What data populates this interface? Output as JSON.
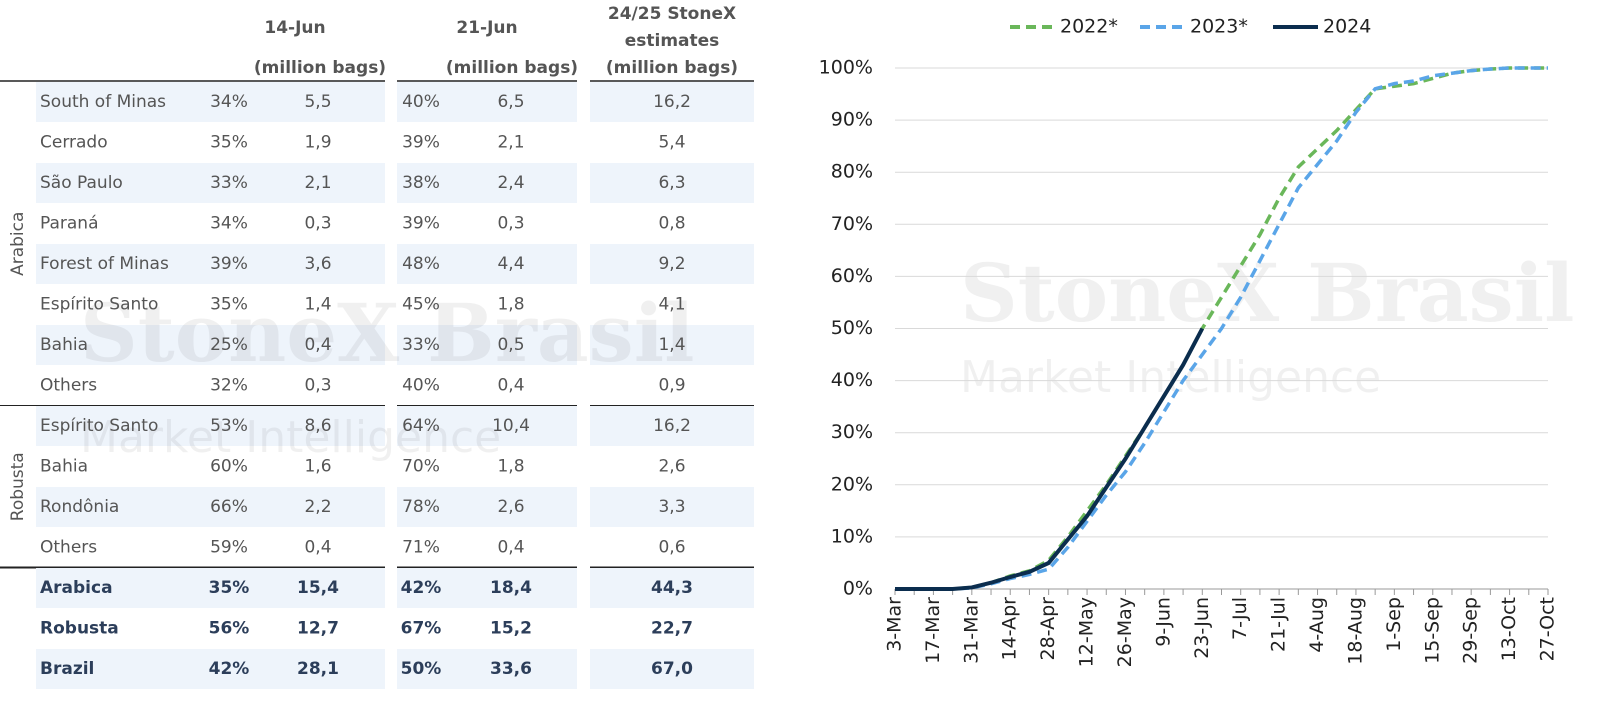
{
  "watermark": [
    "StoneX Brasil",
    "Market Intelligence"
  ],
  "table": {
    "header": {
      "col1": "14-Jun",
      "col1_unit": "(million bags)",
      "col2": "21-Jun",
      "col2_unit": "(million bags)",
      "col3": [
        "24/25 StoneX",
        "estimates",
        "(million bags)"
      ]
    },
    "groups": [
      {
        "name": "Arabica",
        "rows": [
          [
            "South of Minas",
            "34%",
            "5,5",
            "40%",
            "6,5",
            "16,2"
          ],
          [
            "Cerrado",
            "35%",
            "1,9",
            "39%",
            "2,1",
            "5,4"
          ],
          [
            "São Paulo",
            "33%",
            "2,1",
            "38%",
            "2,4",
            "6,3"
          ],
          [
            "Paraná",
            "34%",
            "0,3",
            "39%",
            "0,3",
            "0,8"
          ],
          [
            "Forest of Minas",
            "39%",
            "3,6",
            "48%",
            "4,4",
            "9,2"
          ],
          [
            "Espírito Santo",
            "35%",
            "1,4",
            "45%",
            "1,8",
            "4,1"
          ],
          [
            "Bahia",
            "25%",
            "0,4",
            "33%",
            "0,5",
            "1,4"
          ],
          [
            "Others",
            "32%",
            "0,3",
            "40%",
            "0,4",
            "0,9"
          ]
        ]
      },
      {
        "name": "Robusta",
        "rows": [
          [
            "Espírito Santo",
            "53%",
            "8,6",
            "64%",
            "10,4",
            "16,2"
          ],
          [
            "Bahia",
            "60%",
            "1,6",
            "70%",
            "1,8",
            "2,6"
          ],
          [
            "Rondônia",
            "66%",
            "2,2",
            "78%",
            "2,6",
            "3,3"
          ],
          [
            "Others",
            "59%",
            "0,4",
            "71%",
            "0,4",
            "0,6"
          ]
        ]
      }
    ],
    "totals": [
      [
        "Arabica",
        "35%",
        "15,4",
        "42%",
        "18,4",
        "44,3"
      ],
      [
        "Robusta",
        "56%",
        "12,7",
        "67%",
        "15,2",
        "22,7"
      ],
      [
        "Brazil",
        "42%",
        "28,1",
        "50%",
        "33,6",
        "67,0"
      ]
    ]
  },
  "chart_data": {
    "type": "line",
    "categories": [
      "3-Mar",
      null,
      "17-Mar",
      null,
      "31-Mar",
      null,
      "14-Apr",
      null,
      "28-Apr",
      null,
      "12-May",
      null,
      "26-May",
      null,
      "9-Jun",
      null,
      "23-Jun",
      null,
      "7-Jul",
      null,
      "21-Jul",
      null,
      "4-Aug",
      null,
      "18-Aug",
      null,
      "1-Sep",
      null,
      "15-Sep",
      null,
      "29-Sep",
      null,
      "13-Oct",
      null,
      "27-Oct"
    ],
    "series": [
      {
        "name": "2022*",
        "color": "#6ab75a",
        "dash": true,
        "values": [
          0,
          0,
          0,
          0,
          0.3,
          1.2,
          2.5,
          3.5,
          5.5,
          10,
          15,
          20,
          25.5,
          31,
          37,
          43,
          50,
          56,
          62,
          68,
          75,
          81,
          84.5,
          88,
          92,
          96,
          96.5,
          97,
          98,
          99,
          99.5,
          99.8,
          100,
          100,
          100
        ]
      },
      {
        "name": "2023*",
        "color": "#5aa5e8",
        "dash": true,
        "values": [
          0,
          0,
          0,
          0,
          0.2,
          1,
          2,
          2.8,
          3.8,
          8,
          13,
          18,
          22.5,
          28,
          34,
          40,
          45,
          50,
          56,
          63,
          70,
          77,
          81.5,
          86,
          91.5,
          96,
          97,
          97.5,
          98.5,
          99,
          99.5,
          99.8,
          100,
          100,
          100
        ]
      },
      {
        "name": "2024",
        "color": "#0b2d4e",
        "dash": false,
        "values": [
          0,
          0,
          0,
          0,
          0.3,
          1.2,
          2.3,
          3.3,
          5,
          9.5,
          14,
          19.5,
          25,
          31,
          37,
          43,
          50,
          null,
          null,
          null,
          null,
          null,
          null,
          null,
          null,
          null,
          null,
          null,
          null,
          null,
          null,
          null,
          null,
          null,
          null
        ]
      }
    ],
    "ylim": [
      0,
      100
    ],
    "yticks": [
      {
        "value": 0,
        "label": "0%"
      },
      {
        "value": 10,
        "label": "10%"
      },
      {
        "value": 20,
        "label": "20%"
      },
      {
        "value": 30,
        "label": "30%"
      },
      {
        "value": 40,
        "label": "40%"
      },
      {
        "value": 50,
        "label": "50%"
      },
      {
        "value": 60,
        "label": "60%"
      },
      {
        "value": 70,
        "label": "70%"
      },
      {
        "value": 80,
        "label": "80%"
      },
      {
        "value": 90,
        "label": "90%"
      },
      {
        "value": 100,
        "label": "100%"
      }
    ],
    "grid": true,
    "legend": "top"
  }
}
